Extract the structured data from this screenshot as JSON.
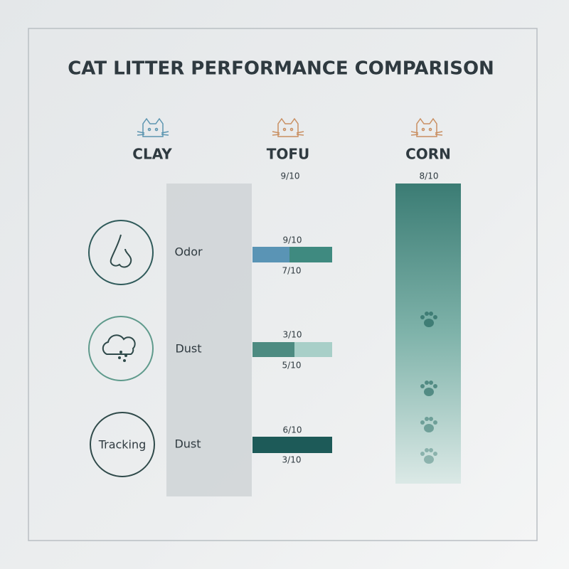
{
  "header": {
    "title": "CAT LITTER PERFORMANCE COMPARISON"
  },
  "columns": [
    {
      "name": "CLAY"
    },
    {
      "name": "TOFU",
      "score": "9/10"
    },
    {
      "name": "CORN",
      "score": "8/10"
    }
  ],
  "rows": [
    {
      "label": "Odor",
      "top": "9/10",
      "bottom": "7/10"
    },
    {
      "label": "Dust",
      "top": "3/10",
      "bottom": "5/10"
    },
    {
      "badge": "Tracking",
      "label": "Dust",
      "top": "6/10",
      "bottom": "3/10"
    }
  ]
}
